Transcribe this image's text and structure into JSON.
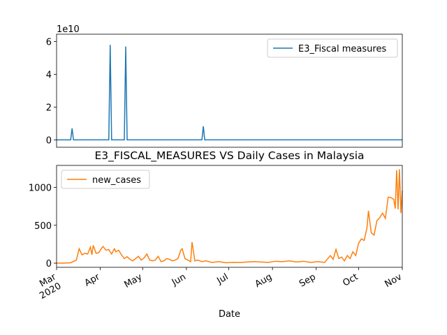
{
  "chart_data": [
    {
      "type": "line",
      "y_offset_label": "1e10",
      "x": [
        0,
        10,
        11,
        12,
        37,
        38,
        39,
        48,
        49,
        50,
        103,
        104,
        105,
        245
      ],
      "series": [
        {
          "name": "E3_Fiscal measures",
          "color": "#1f77b4",
          "values": [
            0,
            0,
            0.7,
            0,
            0,
            5.8,
            0,
            0,
            5.7,
            0,
            0,
            0.83,
            0,
            0
          ]
        }
      ],
      "xlim": [
        0,
        245
      ],
      "ylim": [
        -0.45,
        6.45
      ],
      "yticks": [
        0,
        2,
        4,
        6
      ],
      "legend": "upper right"
    },
    {
      "type": "line",
      "title": "E3_FISCAL_MEASURES VS Daily Cases in Malaysia",
      "xlabel": "Date",
      "x": [
        0,
        5,
        10,
        14,
        16,
        18,
        20,
        22,
        24,
        25,
        26,
        28,
        30,
        32,
        33,
        35,
        37,
        39,
        41,
        42,
        44,
        46,
        48,
        50,
        52,
        54,
        56,
        58,
        60,
        62,
        64,
        66,
        68,
        70,
        72,
        74,
        76,
        78,
        80,
        82,
        84,
        86,
        88,
        89,
        91,
        93,
        95,
        96,
        98,
        100,
        103,
        106,
        110,
        115,
        120,
        125,
        130,
        135,
        140,
        145,
        150,
        155,
        160,
        165,
        170,
        175,
        180,
        185,
        190,
        194,
        196,
        198,
        200,
        202,
        204,
        206,
        208,
        210,
        212,
        214,
        216,
        218,
        220,
        221,
        223,
        225,
        227,
        229,
        231,
        233,
        235,
        237,
        239,
        240,
        241,
        242,
        243,
        244,
        245
      ],
      "series": [
        {
          "name": "new_cases",
          "color": "#ff7f0e",
          "values": [
            0,
            0,
            5,
            40,
            190,
            110,
            130,
            120,
            212,
            110,
            235,
            130,
            140,
            200,
            220,
            170,
            180,
            120,
            190,
            150,
            170,
            110,
            60,
            85,
            50,
            30,
            60,
            90,
            40,
            70,
            120,
            40,
            30,
            40,
            90,
            20,
            30,
            60,
            50,
            30,
            40,
            60,
            170,
            190,
            60,
            40,
            20,
            277,
            30,
            40,
            20,
            30,
            10,
            20,
            5,
            10,
            8,
            15,
            20,
            15,
            10,
            25,
            20,
            30,
            15,
            25,
            10,
            20,
            10,
            100,
            50,
            182,
            60,
            80,
            30,
            100,
            60,
            150,
            100,
            260,
            320,
            300,
            470,
            691,
            400,
            370,
            560,
            600,
            660,
            590,
            870,
            865,
            840,
            720,
            1228,
            710,
            1240,
            660,
            957
          ]
        }
      ],
      "xlim": [
        0,
        245
      ],
      "xticks": [
        {
          "value": 0,
          "label": "Mar\n2020"
        },
        {
          "value": 31,
          "label": "Apr"
        },
        {
          "value": 61,
          "label": "May"
        },
        {
          "value": 92,
          "label": "Jun"
        },
        {
          "value": 122,
          "label": "Jul"
        },
        {
          "value": 153,
          "label": "Aug"
        },
        {
          "value": 184,
          "label": "Sep"
        },
        {
          "value": 214,
          "label": "Oct"
        },
        {
          "value": 245,
          "label": "Nov"
        }
      ],
      "ylim": [
        -55,
        1290
      ],
      "yticks": [
        0,
        500,
        1000
      ],
      "legend": "upper left"
    }
  ]
}
